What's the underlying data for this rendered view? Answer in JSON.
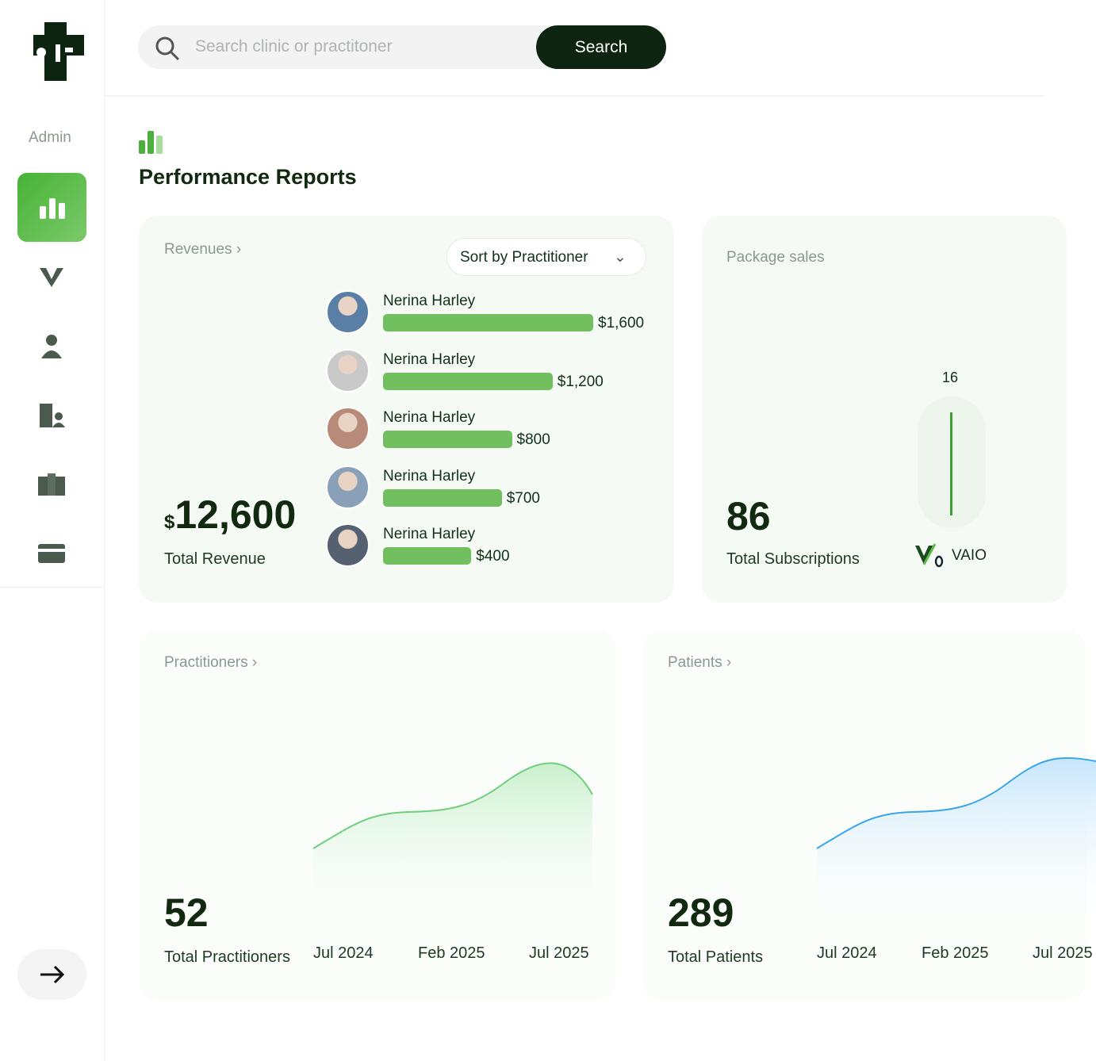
{
  "sidebar": {
    "role": "Admin"
  },
  "search": {
    "placeholder": "Search clinic or practitoner",
    "button": "Search"
  },
  "page": {
    "title": "Performance Reports"
  },
  "revenues": {
    "title": "Revenues",
    "sort": "Sort by Practitioner",
    "currency": "$",
    "total": "12,600",
    "total_label": "Total Revenue",
    "items": [
      {
        "name": "Nerina Harley",
        "value": 1600,
        "label": "$1,600"
      },
      {
        "name": "Nerina Harley",
        "value": 1200,
        "label": "$1,200"
      },
      {
        "name": "Nerina Harley",
        "value": 800,
        "label": "$800"
      },
      {
        "name": "Nerina Harley",
        "value": 700,
        "label": "$700"
      },
      {
        "name": "Nerina Harley",
        "value": 400,
        "label": "$400"
      }
    ]
  },
  "package_sales": {
    "title": "Package sales",
    "total": "86",
    "total_label": "Total Subscriptions",
    "packages": [
      {
        "name": "VAIO",
        "value": 16
      }
    ]
  },
  "practitioners": {
    "title": "Practitioners",
    "total": "52",
    "total_label": "Total Practitioners",
    "x_labels": [
      "Jul 2024",
      "Feb 2025",
      "Jul 2025"
    ]
  },
  "patients": {
    "title": "Patients",
    "total": "289",
    "total_label": "Total Patients",
    "x_labels": [
      "Jul 2024",
      "Feb 2025",
      "Jul 2025"
    ]
  }
}
